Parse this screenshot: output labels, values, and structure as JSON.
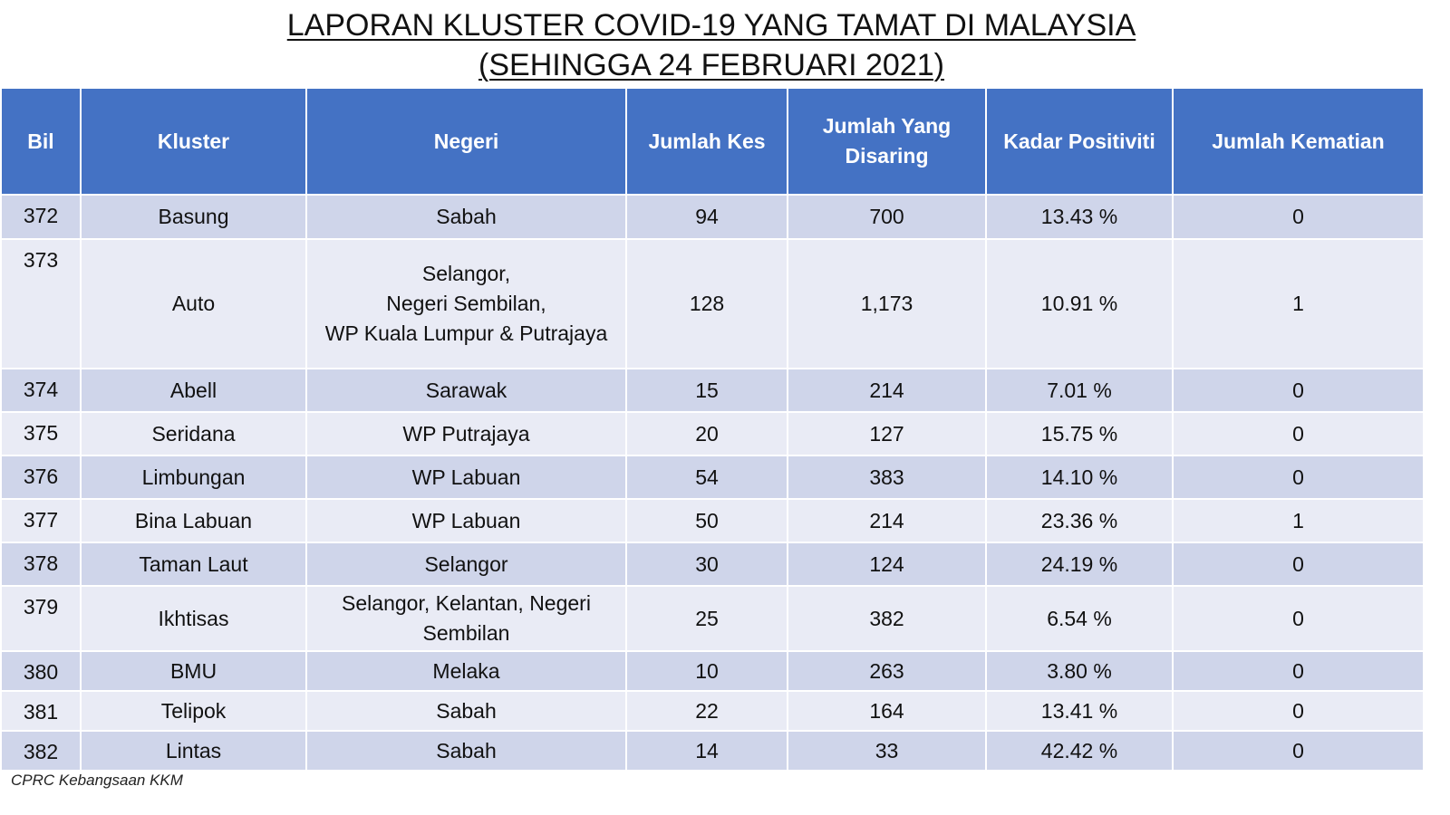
{
  "title": {
    "line1": "LAPORAN KLUSTER COVID-19 YANG TAMAT DI MALAYSIA",
    "line2": "(SEHINGGA 24 FEBRUARI 2021)"
  },
  "table": {
    "headers": [
      "Bil",
      "Kluster",
      "Negeri",
      "Jumlah Kes",
      "Jumlah Yang Disaring",
      "Kadar Positiviti",
      "Jumlah Kematian"
    ],
    "rows": [
      {
        "bil": "372",
        "kluster": "Basung",
        "negeri": "Sabah",
        "kes": "94",
        "disaring": "700",
        "positiviti": "13.43 %",
        "kematian": "0"
      },
      {
        "bil": "373",
        "kluster": "Auto",
        "negeri": "Selangor,\nNegeri Sembilan,\nWP Kuala Lumpur & Putrajaya",
        "kes": "128",
        "disaring": "1,173",
        "positiviti": "10.91 %",
        "kematian": "1"
      },
      {
        "bil": "374",
        "kluster": "Abell",
        "negeri": "Sarawak",
        "kes": "15",
        "disaring": "214",
        "positiviti": "7.01 %",
        "kematian": "0"
      },
      {
        "bil": "375",
        "kluster": "Seridana",
        "negeri": "WP Putrajaya",
        "kes": "20",
        "disaring": "127",
        "positiviti": "15.75 %",
        "kematian": "0"
      },
      {
        "bil": "376",
        "kluster": "Limbungan",
        "negeri": "WP Labuan",
        "kes": "54",
        "disaring": "383",
        "positiviti": "14.10 %",
        "kematian": "0"
      },
      {
        "bil": "377",
        "kluster": "Bina Labuan",
        "negeri": "WP Labuan",
        "kes": "50",
        "disaring": "214",
        "positiviti": "23.36 %",
        "kematian": "1"
      },
      {
        "bil": "378",
        "kluster": "Taman Laut",
        "negeri": "Selangor",
        "kes": "30",
        "disaring": "124",
        "positiviti": "24.19 %",
        "kematian": "0"
      },
      {
        "bil": "379",
        "kluster": "Ikhtisas",
        "negeri": "Selangor, Kelantan, Negeri\nSembilan",
        "kes": "25",
        "disaring": "382",
        "positiviti": "6.54 %",
        "kematian": "0"
      },
      {
        "bil": "380",
        "kluster": "BMU",
        "negeri": "Melaka",
        "kes": "10",
        "disaring": "263",
        "positiviti": "3.80 %",
        "kematian": "0"
      },
      {
        "bil": "381",
        "kluster": "Telipok",
        "negeri": "Sabah",
        "kes": "22",
        "disaring": "164",
        "positiviti": "13.41 %",
        "kematian": "0"
      },
      {
        "bil": "382",
        "kluster": "Lintas",
        "negeri": "Sabah",
        "kes": "14",
        "disaring": "33",
        "positiviti": "42.42 %",
        "kematian": "0"
      }
    ]
  },
  "footer": {
    "source": "CPRC Kebangsaan KKM"
  },
  "colors": {
    "header_bg": "#4472c4",
    "row_odd": "#cfd5ea",
    "row_even": "#e9ebf5"
  }
}
